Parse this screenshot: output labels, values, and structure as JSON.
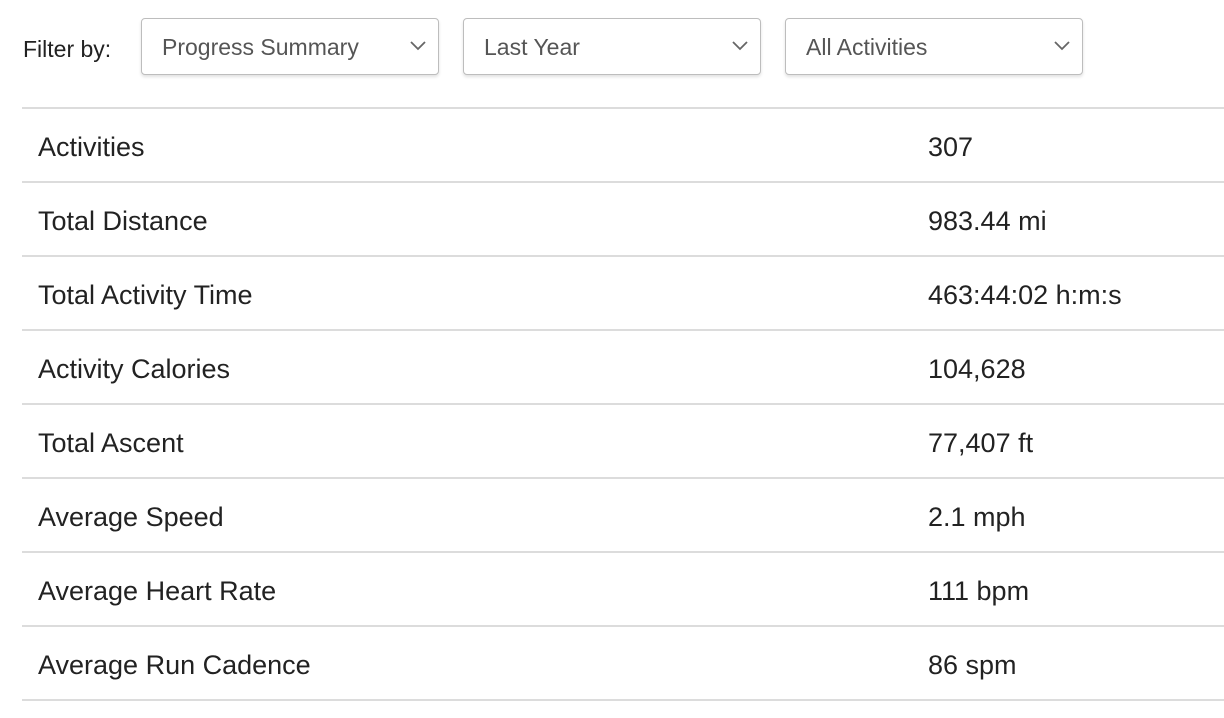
{
  "filters": {
    "label": "Filter by:",
    "report": {
      "value": "Progress Summary",
      "icon": "chevron-down-icon"
    },
    "period": {
      "value": "Last Year",
      "icon": "chevron-down-icon"
    },
    "activity": {
      "value": "All Activities",
      "icon": "chevron-down-icon"
    }
  },
  "stats": [
    {
      "label": "Activities",
      "value": "307"
    },
    {
      "label": "Total Distance",
      "value": "983.44 mi"
    },
    {
      "label": "Total Activity Time",
      "value": "463:44:02 h:m:s"
    },
    {
      "label": "Activity Calories",
      "value": "104,628"
    },
    {
      "label": "Total Ascent",
      "value": "77,407 ft"
    },
    {
      "label": "Average Speed",
      "value": "2.1 mph"
    },
    {
      "label": "Average Heart Rate",
      "value": "111 bpm"
    },
    {
      "label": "Average Run Cadence",
      "value": "86 spm"
    }
  ],
  "colors": {
    "text": "#222222",
    "select_text": "#555555",
    "border": "#bdbdbd",
    "divider": "#dcdcdc"
  }
}
